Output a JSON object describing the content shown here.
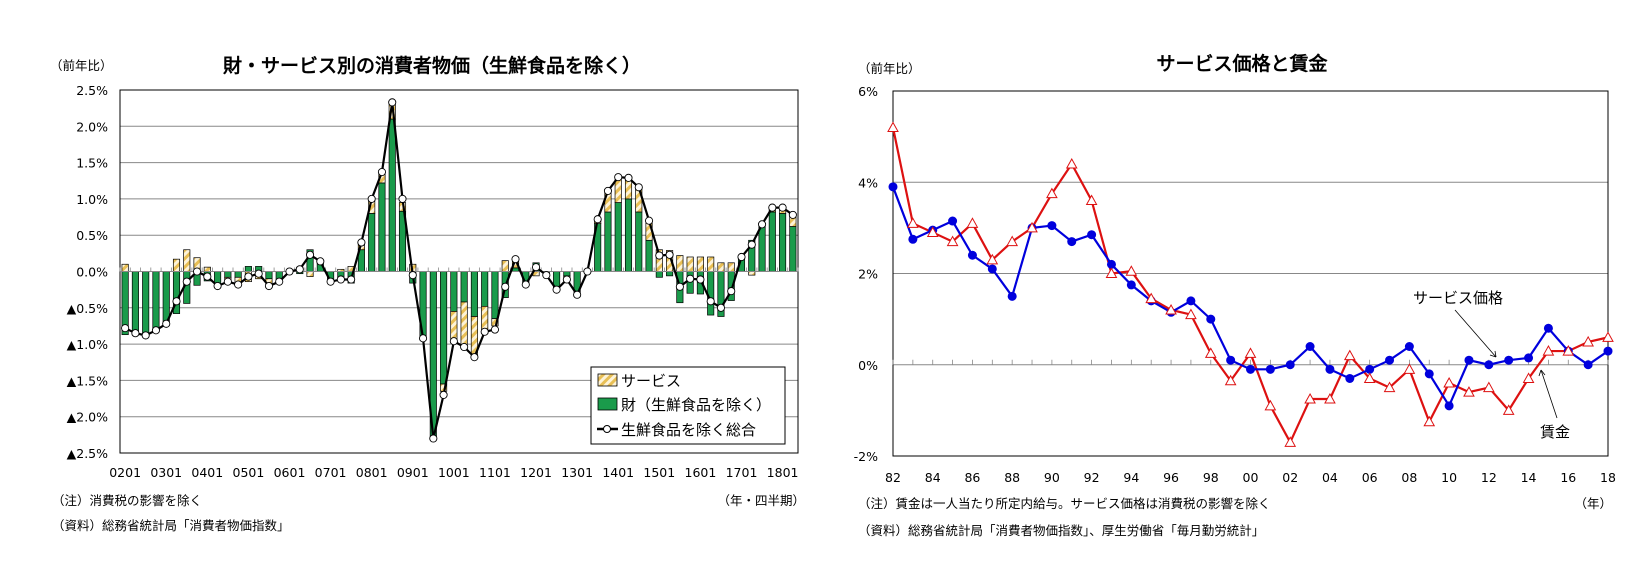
{
  "colors": {
    "goods": "#1a9b4b",
    "service_fill": "#f6dc9a",
    "service_hatch": "#e0b040",
    "total_line": "#000000",
    "service_price": "#0000dd",
    "wage": "#dd1111",
    "grid": "#888888"
  },
  "chart_data": [
    {
      "type": "bar",
      "stacked": true,
      "title": "財・サービス別の消費者物価（生鮮食品を除く）",
      "ylabel": "（前年比）",
      "xlabel": "（年・四半期）",
      "ylim": [
        -2.5,
        2.5
      ],
      "yticks": [
        2.5,
        2.0,
        1.5,
        1.0,
        0.5,
        0.0,
        -0.5,
        -1.0,
        -1.5,
        -2.0,
        -2.5
      ],
      "ytick_labels": [
        "2.5%",
        "2.0%",
        "1.5%",
        "1.0%",
        "0.5%",
        "0.0%",
        "▲0.5%",
        "▲1.0%",
        "▲1.5%",
        "▲2.0%",
        "▲2.5%"
      ],
      "xtick_labels": [
        "0201",
        "0301",
        "0401",
        "0501",
        "0601",
        "0701",
        "0801",
        "0901",
        "1001",
        "1101",
        "1201",
        "1301",
        "1401",
        "1501",
        "1601",
        "1701",
        "1801"
      ],
      "grid": true,
      "legend_placement": "bottom-right",
      "series": [
        {
          "name": "サービス",
          "kind": "bar-hatched",
          "values": [
            0.1,
            0,
            0,
            0,
            0,
            0.17,
            0.3,
            0.19,
            0.06,
            0,
            -0.06,
            -0.1,
            -0.14,
            -0.1,
            -0.1,
            0,
            0,
            0.06,
            -0.07,
            0,
            0,
            0.03,
            0.07,
            0.1,
            0.18,
            0.12,
            0.2,
            0.12,
            0.1,
            0,
            0,
            -0.1,
            -0.4,
            -0.6,
            -0.55,
            -0.33,
            -0.1,
            0.15,
            0.1,
            0,
            -0.06,
            0,
            0,
            -0.05,
            0,
            0,
            0.06,
            0.3,
            0.35,
            0.29,
            0.34,
            0.27,
            0.3,
            0.29,
            0.22,
            0.2,
            0.2,
            0.2,
            0.12,
            0.12,
            0,
            -0.05,
            0,
            0.06,
            0.08,
            0.16
          ]
        },
        {
          "name": "財（生鮮食品を除く）",
          "kind": "bar",
          "values": [
            -0.87,
            -0.85,
            -0.88,
            -0.81,
            -0.72,
            -0.58,
            -0.44,
            -0.19,
            -0.13,
            -0.2,
            -0.08,
            -0.08,
            0.07,
            0.07,
            -0.1,
            -0.14,
            0,
            -0.03,
            0.3,
            0.14,
            -0.14,
            -0.1,
            -0.16,
            0.3,
            0.8,
            1.22,
            2.1,
            0.83,
            -0.16,
            -0.92,
            -2.28,
            -1.55,
            -0.55,
            -0.42,
            -0.62,
            -0.48,
            -0.65,
            -0.36,
            0.05,
            -0.18,
            0.12,
            -0.05,
            -0.25,
            -0.06,
            -0.32,
            0,
            0.66,
            0.82,
            0.95,
            1.0,
            0.82,
            0.43,
            -0.08,
            -0.06,
            -0.43,
            -0.3,
            -0.31,
            -0.6,
            -0.62,
            -0.4,
            0.2,
            0.43,
            0.65,
            0.82,
            0.8,
            0.62
          ]
        },
        {
          "name": "生鮮食品を除く総合",
          "kind": "line-marker",
          "values": [
            -0.78,
            -0.85,
            -0.88,
            -0.81,
            -0.72,
            -0.41,
            -0.14,
            0.0,
            -0.07,
            -0.2,
            -0.14,
            -0.18,
            -0.07,
            -0.03,
            -0.2,
            -0.14,
            0.0,
            0.03,
            0.23,
            0.14,
            -0.14,
            -0.11,
            -0.11,
            0.4,
            1.0,
            1.37,
            2.33,
            1.0,
            -0.05,
            -0.92,
            -2.3,
            -1.7,
            -0.96,
            -1.04,
            -1.18,
            -0.83,
            -0.8,
            -0.21,
            0.17,
            -0.18,
            0.06,
            -0.05,
            -0.25,
            -0.11,
            -0.32,
            0.0,
            0.72,
            1.11,
            1.3,
            1.29,
            1.16,
            0.7,
            0.22,
            0.23,
            -0.21,
            -0.1,
            -0.11,
            -0.41,
            -0.5,
            -0.27,
            0.2,
            0.37,
            0.65,
            0.88,
            0.88,
            0.78
          ]
        }
      ],
      "notes": [
        "（注）消費税の影響を除く",
        "（資料）総務省統計局「消費者物価指数」"
      ]
    },
    {
      "type": "line",
      "title": "サービス価格と賃金",
      "ylabel": "（前年比）",
      "xlabel": "（年）",
      "ylim": [
        -2,
        6
      ],
      "yticks": [
        6,
        4,
        2,
        0,
        -2
      ],
      "ytick_labels": [
        "6%",
        "4%",
        "2%",
        "0%",
        "-2%"
      ],
      "x": [
        1982,
        1983,
        1984,
        1985,
        1986,
        1987,
        1988,
        1989,
        1990,
        1991,
        1992,
        1993,
        1994,
        1995,
        1996,
        1997,
        1998,
        1999,
        2000,
        2001,
        2002,
        2003,
        2004,
        2005,
        2006,
        2007,
        2008,
        2009,
        2010,
        2011,
        2012,
        2013,
        2014,
        2015,
        2016,
        2017,
        2018
      ],
      "xtick_labels": [
        "82",
        "84",
        "86",
        "88",
        "90",
        "92",
        "94",
        "96",
        "98",
        "00",
        "02",
        "04",
        "06",
        "08",
        "10",
        "12",
        "14",
        "16",
        "18"
      ],
      "grid": true,
      "series": [
        {
          "name": "サービス価格",
          "marker": "circle",
          "values": [
            3.9,
            2.75,
            2.95,
            3.15,
            2.4,
            2.1,
            1.5,
            3.0,
            3.05,
            2.7,
            2.85,
            2.2,
            1.75,
            1.4,
            1.15,
            1.4,
            1.0,
            0.1,
            -0.1,
            -0.1,
            0.0,
            0.4,
            -0.1,
            -0.3,
            -0.1,
            0.1,
            0.4,
            -0.2,
            -0.9,
            0.1,
            0.0,
            0.1,
            0.15,
            0.8,
            0.3,
            0.0,
            0.3
          ]
        },
        {
          "name": "賃金",
          "marker": "triangle",
          "values": [
            5.2,
            3.1,
            2.9,
            2.7,
            3.1,
            2.3,
            2.7,
            3.0,
            3.75,
            4.4,
            3.6,
            2.0,
            2.05,
            1.45,
            1.2,
            1.1,
            0.25,
            -0.35,
            0.25,
            -0.9,
            -1.7,
            -0.75,
            -0.75,
            0.2,
            -0.3,
            -0.5,
            -0.1,
            -1.25,
            -0.4,
            -0.6,
            -0.5,
            -1.0,
            -0.3,
            0.3,
            0.3,
            0.5,
            0.6
          ]
        }
      ],
      "notes": [
        "（注）賃金は一人当たり所定内給与。サービス価格は消費税の影響を除く",
        "（資料）総務省統計局「消費者物価指数」、厚生労働省「毎月勤労統計」"
      ]
    }
  ]
}
